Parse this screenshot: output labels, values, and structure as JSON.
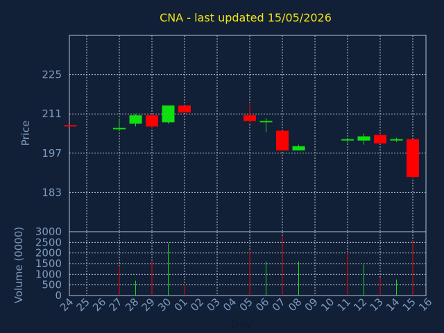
{
  "title": "CNA - last updated 15/05/2026",
  "colors": {
    "background": "#112036",
    "up": "#10e010",
    "down": "#ff0000",
    "title": "#f2e515",
    "axis_text": "#7f9bc0",
    "grid": "#b8c4d4"
  },
  "chart_data": [
    {
      "type": "candlestick",
      "ylabel": "Price",
      "yticks": [
        183,
        197,
        211,
        225
      ],
      "ylim": [
        169,
        239
      ],
      "grid": true,
      "categories": [
        "24",
        "25",
        "26",
        "27",
        "28",
        "29",
        "30",
        "01",
        "02",
        "03",
        "04",
        "05",
        "06",
        "07",
        "08",
        "09",
        "10",
        "11",
        "12",
        "13",
        "14",
        "15",
        "16"
      ],
      "candles": [
        {
          "x": "24",
          "open": 207,
          "high": 207,
          "low": 206.5,
          "close": 206.5
        },
        {
          "x": "27",
          "open": 206,
          "high": 209,
          "low": 205,
          "close": 206
        },
        {
          "x": "28",
          "open": 207.5,
          "high": 211,
          "low": 206.5,
          "close": 210.5
        },
        {
          "x": "29",
          "open": 210.5,
          "high": 211,
          "low": 206,
          "close": 206.5
        },
        {
          "x": "30",
          "open": 208,
          "high": 214,
          "low": 207.5,
          "close": 214
        },
        {
          "x": "01",
          "open": 214,
          "high": 214,
          "low": 211.5,
          "close": 211.5
        },
        {
          "x": "05",
          "open": 210.5,
          "high": 215,
          "low": 207.5,
          "close": 208.5
        },
        {
          "x": "06",
          "open": 208.5,
          "high": 209.5,
          "low": 204.5,
          "close": 208.5
        },
        {
          "x": "07",
          "open": 205,
          "high": 205,
          "low": 198,
          "close": 198
        },
        {
          "x": "08",
          "open": 198,
          "high": 200,
          "low": 198,
          "close": 199.5
        },
        {
          "x": "11",
          "open": 202,
          "high": 202,
          "low": 200.5,
          "close": 202
        },
        {
          "x": "12",
          "open": 201.5,
          "high": 204,
          "low": 200,
          "close": 203
        },
        {
          "x": "13",
          "open": 203.5,
          "high": 204,
          "low": 200.5,
          "close": 200.5
        },
        {
          "x": "14",
          "open": 201.5,
          "high": 202.5,
          "low": 201,
          "close": 202
        },
        {
          "x": "15",
          "open": 202,
          "high": 202,
          "low": 188,
          "close": 188.5
        }
      ]
    },
    {
      "type": "bar",
      "ylabel": "Volume (0000)",
      "xlabel": "Day",
      "yticks": [
        0,
        500,
        1000,
        1500,
        2000,
        2500,
        3000
      ],
      "ylim": [
        0,
        3000
      ],
      "grid": true,
      "categories": [
        "24",
        "25",
        "26",
        "27",
        "28",
        "29",
        "30",
        "01",
        "02",
        "03",
        "04",
        "05",
        "06",
        "07",
        "08",
        "09",
        "10",
        "11",
        "12",
        "13",
        "14",
        "15",
        "16"
      ],
      "values": [
        {
          "x": "27",
          "value": 1400,
          "dir": "down"
        },
        {
          "x": "28",
          "value": 700,
          "dir": "up"
        },
        {
          "x": "29",
          "value": 1650,
          "dir": "down"
        },
        {
          "x": "30",
          "value": 2450,
          "dir": "up"
        },
        {
          "x": "01",
          "value": 550,
          "dir": "down"
        },
        {
          "x": "05",
          "value": 2100,
          "dir": "down"
        },
        {
          "x": "06",
          "value": 1600,
          "dir": "up"
        },
        {
          "x": "07",
          "value": 2800,
          "dir": "down"
        },
        {
          "x": "08",
          "value": 1600,
          "dir": "up"
        },
        {
          "x": "11",
          "value": 2050,
          "dir": "down"
        },
        {
          "x": "12",
          "value": 1450,
          "dir": "up"
        },
        {
          "x": "13",
          "value": 850,
          "dir": "down"
        },
        {
          "x": "14",
          "value": 750,
          "dir": "up"
        },
        {
          "x": "15",
          "value": 2600,
          "dir": "down"
        }
      ]
    }
  ]
}
